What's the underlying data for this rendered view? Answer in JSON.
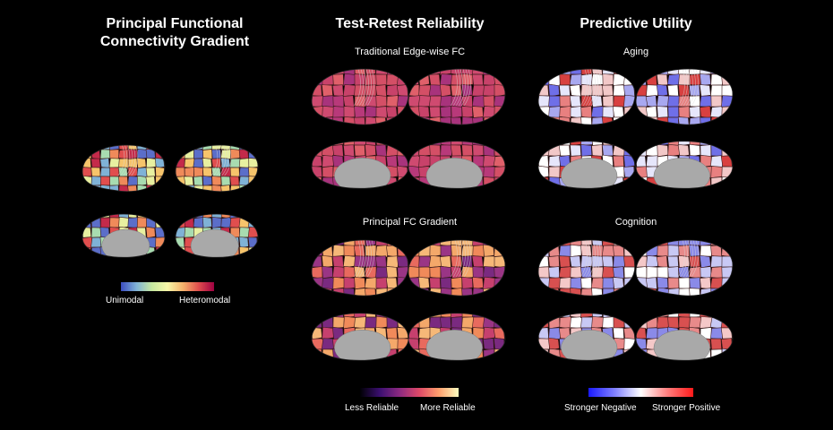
{
  "columns": [
    {
      "title_line1": "Principal Functional",
      "title_line2": "Connectivity Gradient",
      "colorbar": {
        "low": "Unimodal",
        "high": "Heteromodal",
        "colors": [
          "#3b4cc0",
          "#7fb2d6",
          "#c7e9a0",
          "#f7f7a8",
          "#f6b26b",
          "#e04e4e",
          "#9e0142"
        ]
      }
    },
    {
      "title": "Test-Retest Reliability",
      "panels": [
        {
          "label": "Traditional Edge-wise FC"
        },
        {
          "label": "Principal FC Gradient"
        }
      ],
      "colorbar": {
        "low": "Less Reliable",
        "high": "More Reliable",
        "colors": [
          "#000004",
          "#3b0f70",
          "#8c2981",
          "#de4968",
          "#fe9f6d",
          "#fcfdbf"
        ]
      }
    },
    {
      "title": "Predictive Utility",
      "panels": [
        {
          "label": "Aging"
        },
        {
          "label": "Cognition"
        }
      ],
      "colorbar": {
        "low": "Stronger Negative",
        "high": "Stronger Positive",
        "colors": [
          "#1a1aff",
          "#8080ff",
          "#ffffff",
          "#ff8080",
          "#ff1a1a"
        ]
      }
    }
  ],
  "palettes": {
    "gradient": [
      "#5b6ec9",
      "#7fb2d6",
      "#a8dcb0",
      "#e8f0a0",
      "#f6c46b",
      "#ef8a5a",
      "#e04e4e",
      "#c42a4a"
    ],
    "reliability_traditional": [
      "#c8426a",
      "#d44f66",
      "#b8397a",
      "#e0606a",
      "#a8337c",
      "#cf4a70"
    ],
    "reliability_gradient": [
      "#f08a5a",
      "#e86a5e",
      "#f4a86a",
      "#7a2a80",
      "#c6406e",
      "#f6b878",
      "#9a3585"
    ],
    "aging": [
      "#6f6fe8",
      "#a8a8f0",
      "#e6e6fb",
      "#ffffff",
      "#f2c8c8",
      "#e88080",
      "#d84040"
    ],
    "cognition": [
      "#8a8ae8",
      "#c8c8f4",
      "#ffffff",
      "#f4c8c8",
      "#e88a8a",
      "#d85050"
    ]
  }
}
